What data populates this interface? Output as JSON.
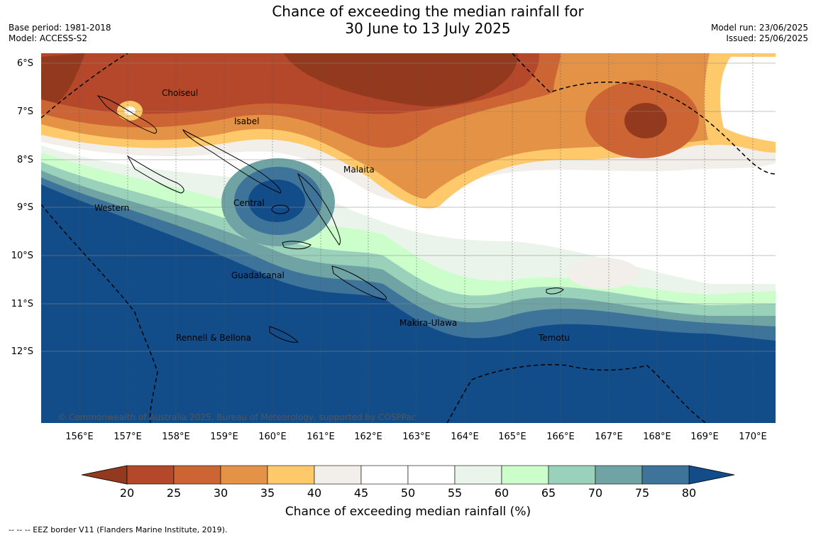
{
  "title": {
    "line1": "Chance of exceeding the median rainfall for",
    "line2": "30 June to 13 July 2025"
  },
  "meta_left": {
    "base_period": "Base period: 1981-2018",
    "model": "Model: ACCESS-S2"
  },
  "meta_right": {
    "model_run": "Model run: 23/06/2025",
    "issued": "Issued: 25/06/2025"
  },
  "map": {
    "lat_labels": [
      "6°S",
      "7°S",
      "8°S",
      "9°S",
      "10°S",
      "11°S",
      "12°S"
    ],
    "lon_labels": [
      "156°E",
      "157°E",
      "158°E",
      "159°E",
      "160°E",
      "161°E",
      "162°E",
      "163°E",
      "164°E",
      "165°E",
      "166°E",
      "167°E",
      "168°E",
      "169°E",
      "170°E"
    ],
    "regions": [
      "Choiseul",
      "Isabel",
      "Malaita",
      "Central",
      "Western",
      "Guadalcanal",
      "Makira-Ulawa",
      "Rennell & Bellona",
      "Temotu"
    ],
    "copyright": "© Commonwealth of Australia 2025, Bureau of Meteorology, supported by COSPPac"
  },
  "colorbar": {
    "ticks": [
      "20",
      "25",
      "30",
      "35",
      "40",
      "45",
      "50",
      "55",
      "60",
      "65",
      "70",
      "75",
      "80"
    ],
    "colors": [
      "#93391d",
      "#b5482a",
      "#cc6433",
      "#e39246",
      "#fec96a",
      "#f2eee9",
      "#ffffff",
      "#ffffff",
      "#eaf4ea",
      "#cbfecb",
      "#9ad1bb",
      "#6fa3a4",
      "#3e7499",
      "#134d89"
    ],
    "title": "Chance of exceeding median rainfall (%)"
  },
  "footnote": "--  --  -- EEZ border V11 (Flanders Marine Institute, 2019)."
}
